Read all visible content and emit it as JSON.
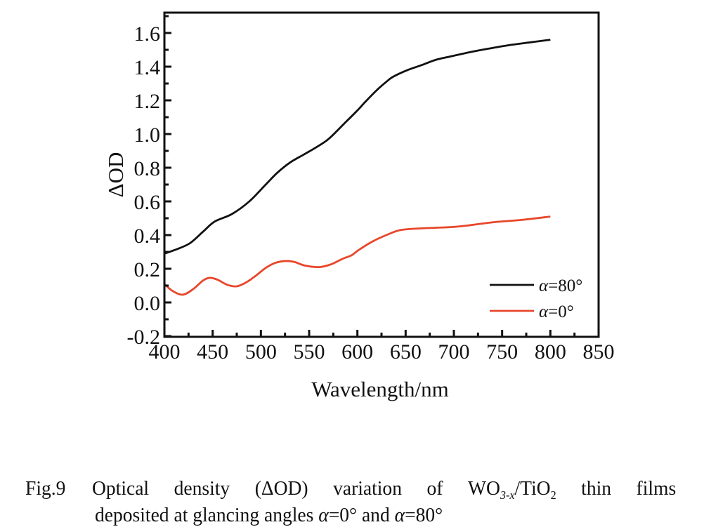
{
  "chart_data": {
    "type": "line",
    "title": "",
    "xlabel": "Wavelength/nm",
    "ylabel": "ΔOD",
    "xlim": [
      400,
      850
    ],
    "ylim": [
      -0.2,
      1.7
    ],
    "xticks": [
      400,
      450,
      500,
      550,
      600,
      650,
      700,
      750,
      800,
      850
    ],
    "xtick_labels": [
      "400",
      "450",
      "500",
      "550",
      "600",
      "650",
      "700",
      "750",
      "800",
      "850"
    ],
    "yticks": [
      -0.2,
      0.0,
      0.2,
      0.4,
      0.6,
      0.8,
      1.0,
      1.2,
      1.4,
      1.6
    ],
    "ytick_labels": [
      "-0.2",
      "0.0",
      "0.2",
      "0.4",
      "0.6",
      "0.8",
      "1.0",
      "1.2",
      "1.4",
      "1.6"
    ],
    "grid": false,
    "legend_position": "bottom-right",
    "series": [
      {
        "name": "α=80°",
        "label_symbol": "α",
        "label_value": "=80°",
        "color": "#111111",
        "x": [
          400,
          410,
          426,
          440,
          452,
          470,
          488,
          505,
          517,
          530,
          545,
          557,
          570,
          586,
          600,
          608,
          620,
          630,
          637,
          652,
          667,
          681,
          696,
          720,
          739,
          760,
          780,
          800
        ],
        "y": [
          0.29,
          0.31,
          0.35,
          0.42,
          0.48,
          0.525,
          0.6,
          0.7,
          0.77,
          0.83,
          0.88,
          0.92,
          0.97,
          1.06,
          1.14,
          1.19,
          1.26,
          1.31,
          1.34,
          1.38,
          1.41,
          1.44,
          1.46,
          1.49,
          1.51,
          1.53,
          1.545,
          1.56
        ]
      },
      {
        "name": "α=0°",
        "label_symbol": "α",
        "label_value": "=0°",
        "color": "#e8472b",
        "x": [
          400,
          408,
          419,
          430,
          440,
          447,
          455,
          465,
          475,
          485,
          495,
          505,
          515,
          526,
          535,
          545,
          560,
          572,
          585,
          594,
          601,
          615,
          630,
          645,
          667,
          703,
          739,
          770,
          800
        ],
        "y": [
          0.11,
          0.07,
          0.046,
          0.08,
          0.13,
          0.146,
          0.135,
          0.105,
          0.096,
          0.12,
          0.16,
          0.205,
          0.235,
          0.246,
          0.24,
          0.22,
          0.21,
          0.225,
          0.26,
          0.28,
          0.31,
          0.36,
          0.4,
          0.43,
          0.44,
          0.45,
          0.475,
          0.49,
          0.51
        ]
      }
    ]
  },
  "caption": {
    "figure_number": "Fig.9",
    "line1_words": [
      "Optical",
      "density",
      "(ΔOD)",
      "variation",
      "of"
    ],
    "formula_prefix": "WO",
    "formula_sub1": "3-x",
    "formula_mid": "/TiO",
    "formula_sub2": "2",
    "line1_tail_words": [
      "thin",
      "films"
    ],
    "line2_prefix": "deposited at glancing angles ",
    "line2_alpha1": "α",
    "line2_val1": "=0° and ",
    "line2_alpha2": "α",
    "line2_val2": "=80°"
  }
}
